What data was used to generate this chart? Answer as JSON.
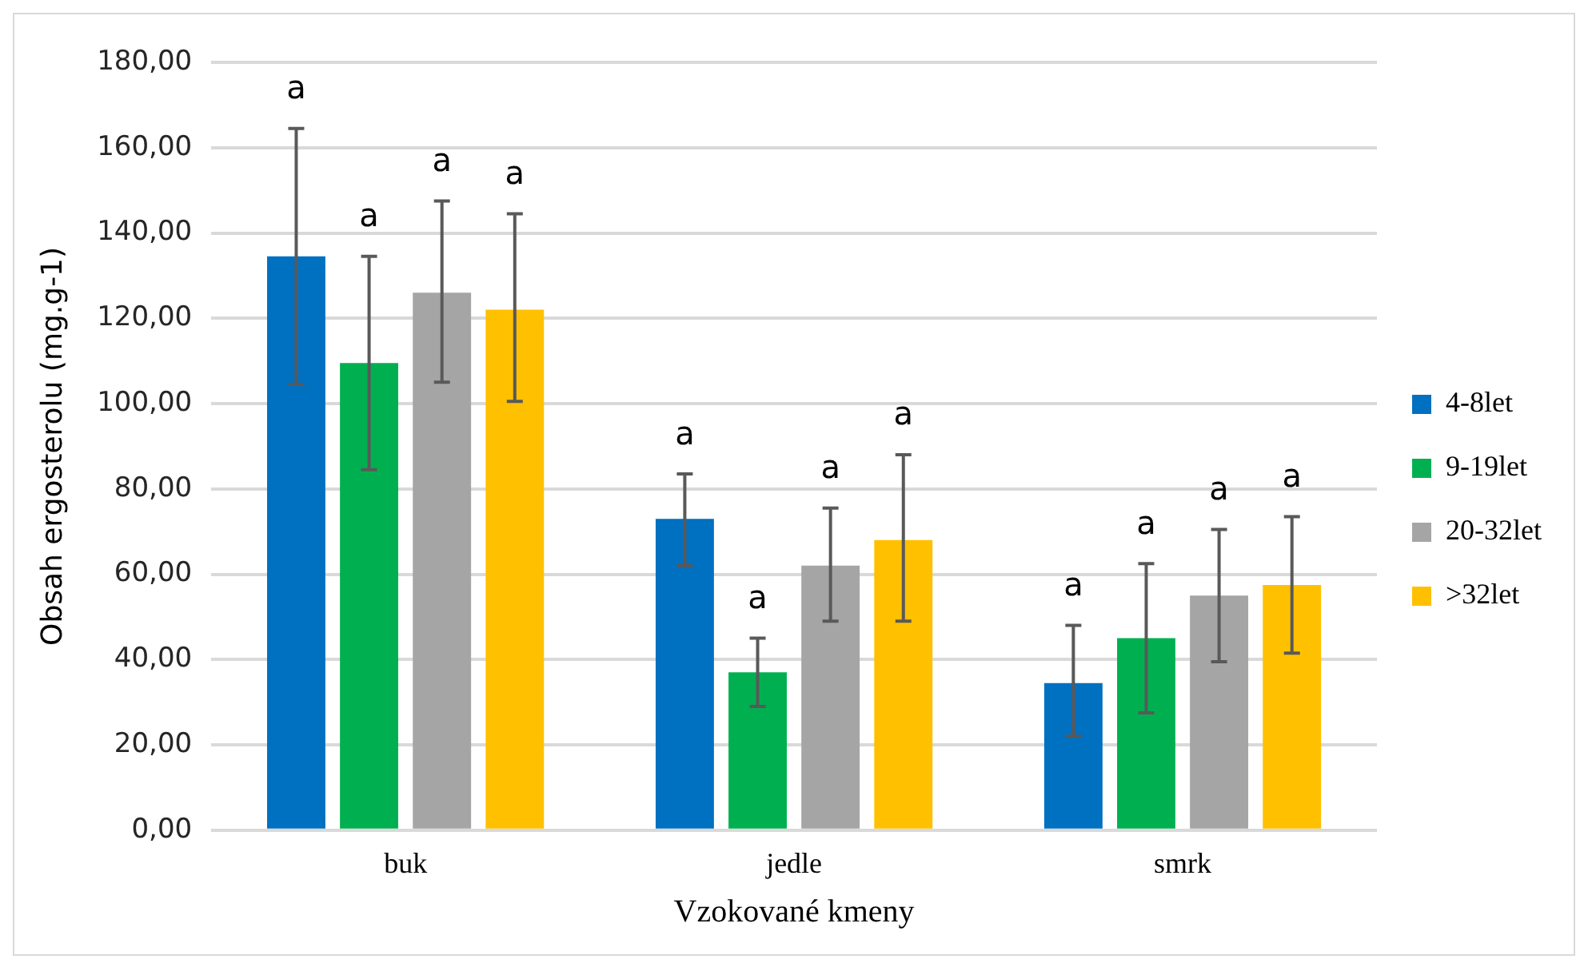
{
  "chart_data": {
    "type": "bar",
    "xlabel": "Vzokované kmeny",
    "ylabel": "Obsah ergosterolu (mg.g-1)",
    "categories": [
      "buk",
      "jedle",
      "smrk"
    ],
    "series": [
      {
        "name": "4-8let",
        "color": "#0070c0",
        "values": [
          134.5,
          73,
          34.5
        ],
        "errors": [
          [
            104.5,
            164.5
          ],
          [
            62,
            83.5
          ],
          [
            22,
            48
          ]
        ]
      },
      {
        "name": "9-19let",
        "color": "#00b050",
        "values": [
          109.5,
          37,
          45
        ],
        "errors": [
          [
            84.5,
            134.5
          ],
          [
            29,
            45
          ],
          [
            27.5,
            62.5
          ]
        ]
      },
      {
        "name": "20-32let",
        "color": "#a5a5a5",
        "values": [
          126,
          62,
          55
        ],
        "errors": [
          [
            105,
            147.5
          ],
          [
            49,
            75.5
          ],
          [
            39.5,
            70.5
          ]
        ]
      },
      {
        "name": ">32let",
        "color": "#ffc000",
        "values": [
          122,
          68,
          57.5
        ],
        "errors": [
          [
            100.5,
            144.5
          ],
          [
            49,
            88
          ],
          [
            41.5,
            73.5
          ]
        ]
      }
    ],
    "annotations": [
      "a",
      "a",
      "a",
      "a",
      "a",
      "a",
      "a",
      "a",
      "a",
      "a",
      "a",
      "a"
    ],
    "ylim": [
      0,
      180
    ],
    "yticks": [
      {
        "value": 0,
        "label": "0,00"
      },
      {
        "value": 20,
        "label": "20,00"
      },
      {
        "value": 40,
        "label": "40,00"
      },
      {
        "value": 60,
        "label": "60,00"
      },
      {
        "value": 80,
        "label": "80,00"
      },
      {
        "value": 100,
        "label": "100,00"
      },
      {
        "value": 120,
        "label": "120,00"
      },
      {
        "value": 140,
        "label": "140,00"
      },
      {
        "value": 160,
        "label": "160,00"
      },
      {
        "value": 180,
        "label": "180,00"
      }
    ],
    "grid": "y",
    "legend": "right"
  }
}
